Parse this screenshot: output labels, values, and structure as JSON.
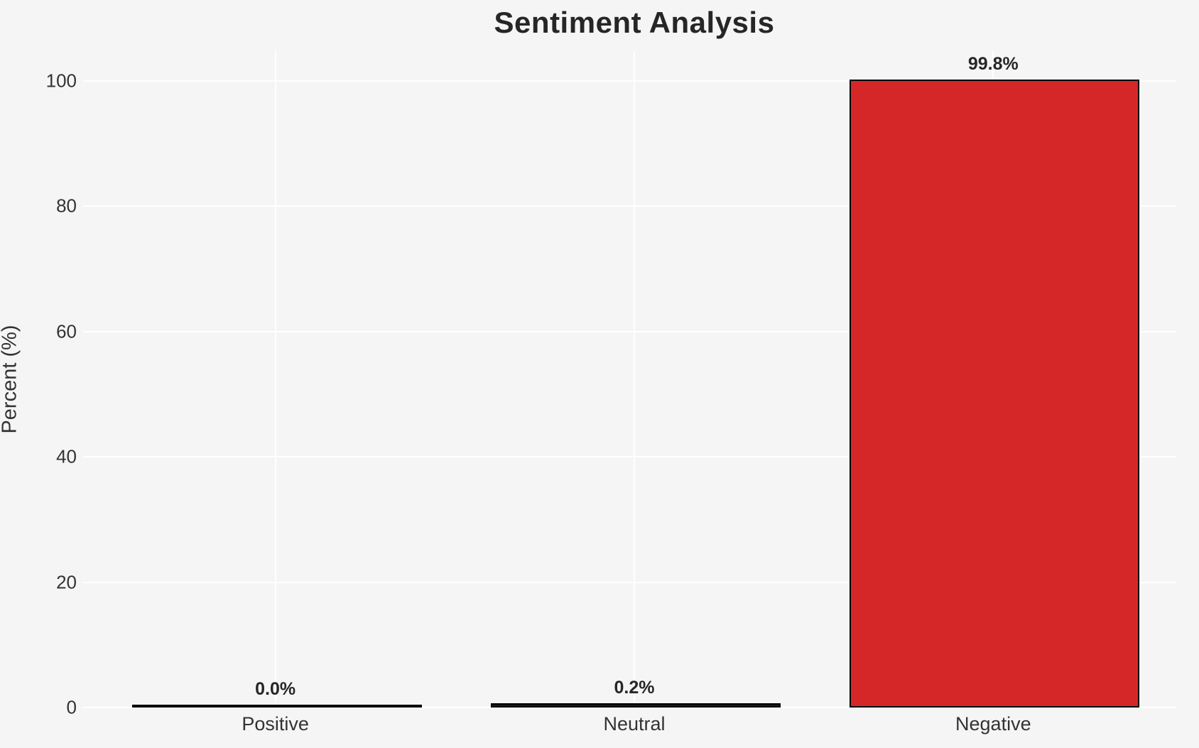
{
  "title": "Sentiment Analysis",
  "chart_data": {
    "type": "bar",
    "title": "Sentiment Analysis",
    "xlabel": "",
    "ylabel": "Percent (%)",
    "categories": [
      "Positive",
      "Neutral",
      "Negative"
    ],
    "values": [
      0.0,
      0.2,
      99.8
    ],
    "value_labels": [
      "0.0%",
      "0.2%",
      "99.8%"
    ],
    "yticks": [
      0,
      20,
      40,
      60,
      80,
      100
    ],
    "ylim": [
      0,
      104.8
    ],
    "grid": true,
    "legend": false,
    "bar_colors": [
      "#1a1a1a",
      "#1a1a1a",
      "#d62728"
    ],
    "bar_edge_color": "#000000",
    "background_color": "#f5f5f6",
    "gridline_color": "#ffffff",
    "text_color": "#262626"
  }
}
